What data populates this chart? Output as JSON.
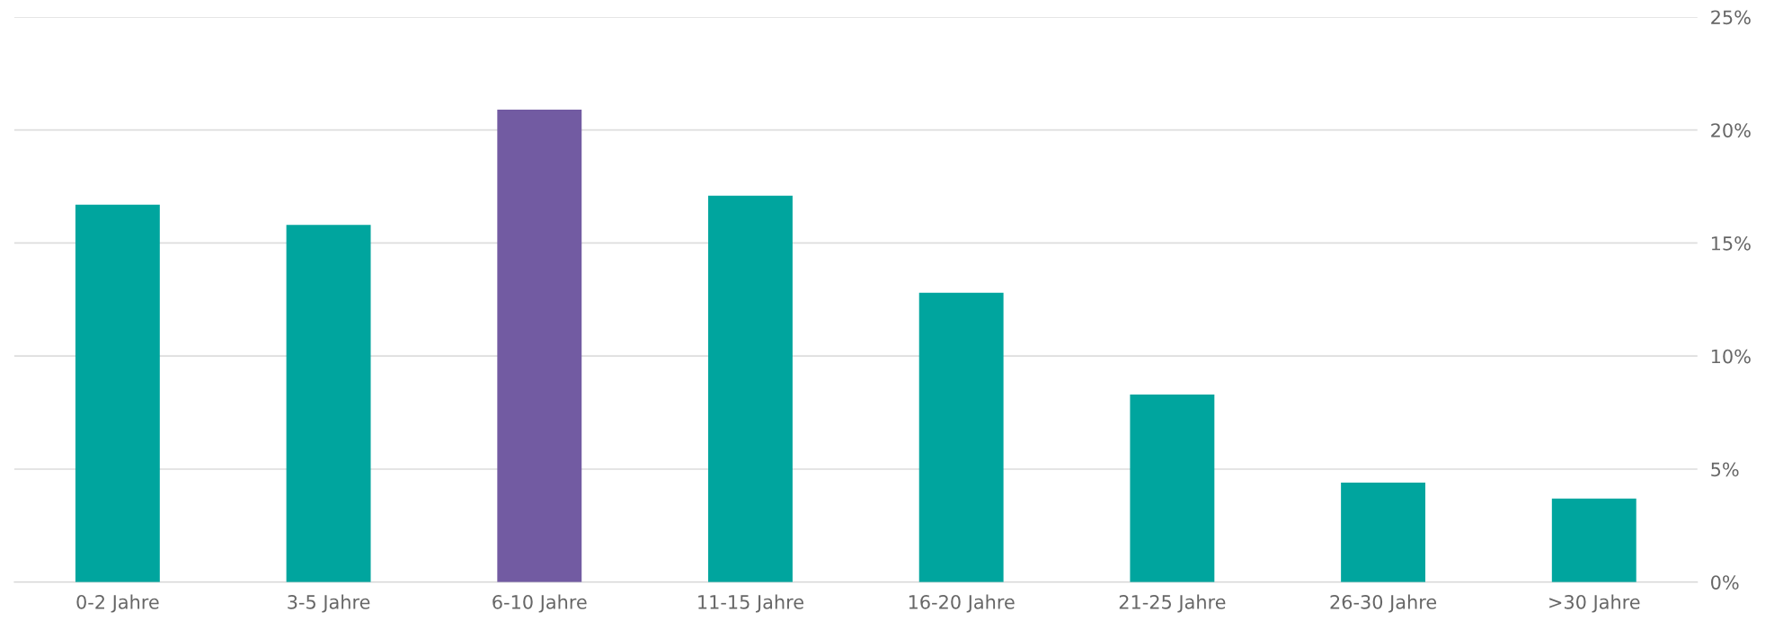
{
  "chart_data": {
    "type": "bar",
    "categories": [
      "0-2 Jahre",
      "3-5 Jahre",
      "6-10 Jahre",
      "11-15 Jahre",
      "16-20 Jahre",
      "21-25 Jahre",
      "26-30 Jahre",
      ">30 Jahre"
    ],
    "values": [
      16.7,
      15.8,
      20.9,
      17.1,
      12.8,
      8.3,
      4.4,
      3.7
    ],
    "colors": [
      "#00a59e",
      "#00a59e",
      "#725ba2",
      "#00a59e",
      "#00a59e",
      "#00a59e",
      "#00a59e",
      "#00a59e"
    ],
    "ylim": [
      0,
      25
    ],
    "yticks": [
      {
        "value": 0,
        "label": "0%"
      },
      {
        "value": 5,
        "label": "5%"
      },
      {
        "value": 10,
        "label": "10%"
      },
      {
        "value": 15,
        "label": "15%"
      },
      {
        "value": 20,
        "label": "20%"
      },
      {
        "value": 25,
        "label": "25%"
      }
    ],
    "grid": "y",
    "legend": false
  }
}
